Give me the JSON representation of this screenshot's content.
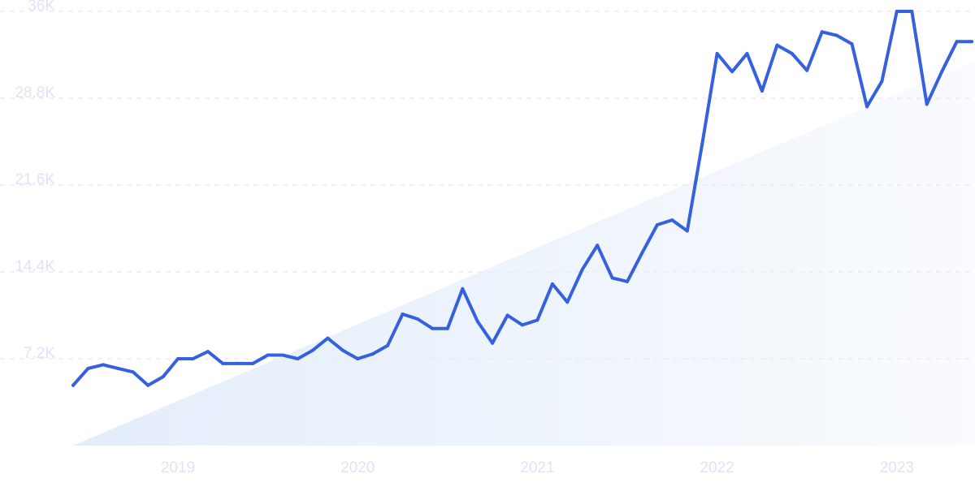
{
  "chart_data": {
    "type": "line",
    "title": "",
    "xlabel": "",
    "ylabel": "",
    "grid": true,
    "legend": "none",
    "ylim": [
      0,
      36000
    ],
    "y_ticks": [
      {
        "value": 7200,
        "label": "7.2K"
      },
      {
        "value": 14400,
        "label": "14.4K"
      },
      {
        "value": 21600,
        "label": "21.6K"
      },
      {
        "value": 28800,
        "label": "28.8K"
      },
      {
        "value": 36000,
        "label": "36K"
      }
    ],
    "x_ticks": [
      "2019",
      "2020",
      "2021",
      "2022",
      "2023"
    ],
    "colors": {
      "line": "#3561df",
      "area_start": "#e3edfa",
      "area_end": "#f9fbfe",
      "tick_text": "#dfe3f8",
      "grid": "#e3e6ef"
    },
    "series": [
      {
        "x": [
          "2018-06",
          "2018-07",
          "2018-08",
          "2018-09",
          "2018-10",
          "2018-11",
          "2018-12",
          "2019-01",
          "2019-02",
          "2019-03",
          "2019-04",
          "2019-05",
          "2019-06",
          "2019-07",
          "2019-08",
          "2019-09",
          "2019-10",
          "2019-11",
          "2019-12",
          "2020-01",
          "2020-02",
          "2020-03",
          "2020-04",
          "2020-05",
          "2020-06",
          "2020-07",
          "2020-08",
          "2020-09",
          "2020-10",
          "2020-11",
          "2020-12",
          "2021-01",
          "2021-02",
          "2021-03",
          "2021-04",
          "2021-05",
          "2021-06",
          "2021-07",
          "2021-08",
          "2021-09",
          "2021-10",
          "2021-11",
          "2021-12",
          "2022-01",
          "2022-02",
          "2022-03",
          "2022-04",
          "2022-05",
          "2022-06",
          "2022-07",
          "2022-08",
          "2022-09",
          "2022-10",
          "2022-11",
          "2022-12",
          "2023-01",
          "2023-02",
          "2023-03",
          "2023-04",
          "2023-05",
          "2023-06"
        ],
        "y": [
          5000,
          6400,
          6700,
          6400,
          6100,
          5000,
          5700,
          7200,
          7200,
          7800,
          6800,
          6800,
          6800,
          7500,
          7500,
          7200,
          7900,
          8900,
          7900,
          7200,
          7600,
          8300,
          10900,
          10500,
          9700,
          9700,
          13000,
          10300,
          8500,
          10800,
          10000,
          10400,
          13400,
          11900,
          14600,
          16600,
          13900,
          13600,
          16000,
          18300,
          18700,
          17800,
          25000,
          32500,
          31000,
          32500,
          29400,
          33200,
          32500,
          31100,
          34300,
          34000,
          33300,
          28100,
          30200,
          36000,
          36000,
          28300,
          31000,
          33500,
          33500
        ]
      }
    ]
  }
}
